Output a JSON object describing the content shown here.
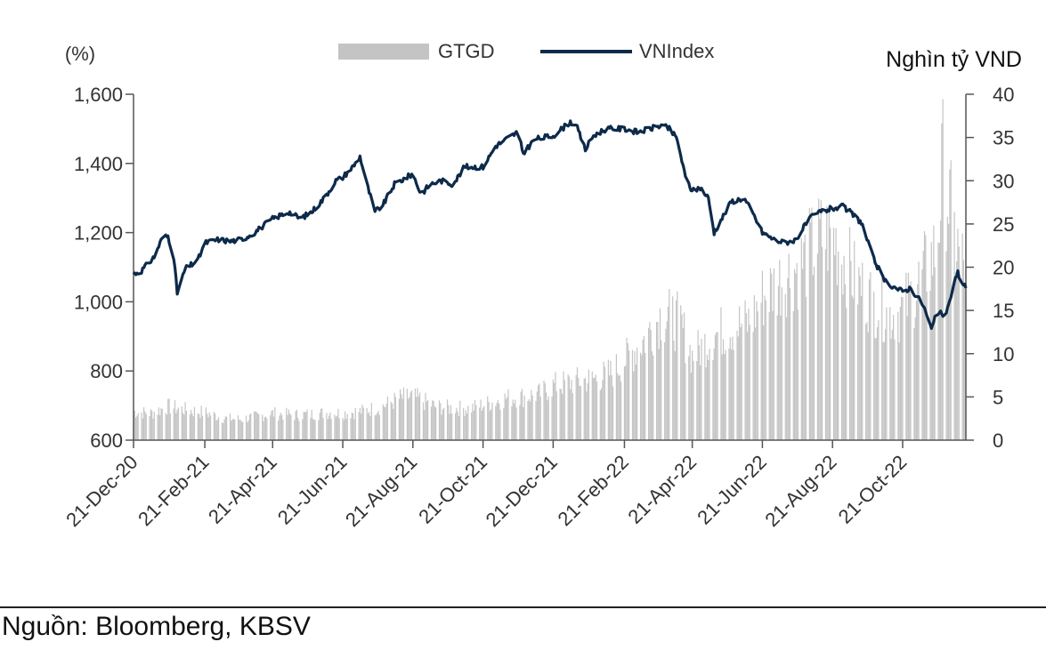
{
  "chart_data": {
    "type": "bar+line",
    "title": "",
    "legend": {
      "placement": "top-center"
    },
    "grid": false,
    "left_axis": {
      "label": "(%)",
      "range": [
        600,
        1600
      ],
      "ticks": [
        "600",
        "800",
        "1,000",
        "1,200",
        "1,400",
        "1,600"
      ],
      "tick_values": [
        600,
        800,
        1000,
        1200,
        1400,
        1600
      ]
    },
    "right_axis": {
      "label": "Nghìn tỷ VND",
      "range": [
        0,
        40
      ],
      "ticks": [
        "0",
        "5",
        "10",
        "15",
        "20",
        "25",
        "30",
        "35",
        "40"
      ],
      "tick_values": [
        0,
        5,
        10,
        15,
        20,
        25,
        30,
        35,
        40
      ]
    },
    "x_axis": {
      "range": [
        "2020-12-21",
        "2022-12-15"
      ],
      "ticks": [
        "21-Dec-20",
        "21-Feb-21",
        "21-Apr-21",
        "21-Jun-21",
        "21-Aug-21",
        "21-Oct-21",
        "21-Dec-21",
        "21-Feb-22",
        "21-Apr-22",
        "21-Jun-22",
        "21-Aug-22",
        "21-Oct-22"
      ],
      "tick_dates": [
        "2020-12-21",
        "2021-02-21",
        "2021-04-21",
        "2021-06-21",
        "2021-08-21",
        "2021-10-21",
        "2021-12-21",
        "2022-02-21",
        "2022-04-21",
        "2022-06-21",
        "2022-08-21",
        "2022-10-21"
      ]
    },
    "series": [
      {
        "name": "GTGD",
        "type": "bar",
        "axis": "right",
        "color": "#c4c4c4",
        "points": [
          [
            "2020-12-21",
            3.4
          ],
          [
            "2021-01-05",
            3.2
          ],
          [
            "2021-01-20",
            4.0
          ],
          [
            "2021-02-05",
            3.6
          ],
          [
            "2021-02-21",
            3.3
          ],
          [
            "2021-03-10",
            2.6
          ],
          [
            "2021-03-25",
            2.5
          ],
          [
            "2021-04-10",
            2.9
          ],
          [
            "2021-04-21",
            3.2
          ],
          [
            "2021-05-10",
            3.0
          ],
          [
            "2021-05-25",
            3.1
          ],
          [
            "2021-06-10",
            3.3
          ],
          [
            "2021-06-21",
            3.2
          ],
          [
            "2021-07-10",
            3.5
          ],
          [
            "2021-07-25",
            4.0
          ],
          [
            "2021-08-10",
            5.0
          ],
          [
            "2021-08-21",
            5.2
          ],
          [
            "2021-09-10",
            4.0
          ],
          [
            "2021-09-25",
            3.8
          ],
          [
            "2021-10-10",
            3.8
          ],
          [
            "2021-10-21",
            4.2
          ],
          [
            "2021-11-10",
            5.0
          ],
          [
            "2021-11-25",
            5.2
          ],
          [
            "2021-12-10",
            5.5
          ],
          [
            "2021-12-21",
            6.5
          ],
          [
            "2022-01-10",
            7.0
          ],
          [
            "2022-01-25",
            7.3
          ],
          [
            "2022-02-10",
            8.0
          ],
          [
            "2022-02-21",
            9.5
          ],
          [
            "2022-03-10",
            12.0
          ],
          [
            "2022-03-25",
            15.0
          ],
          [
            "2022-04-10",
            14.0
          ],
          [
            "2022-04-21",
            10.0
          ],
          [
            "2022-05-10",
            12.5
          ],
          [
            "2022-05-25",
            13.5
          ],
          [
            "2022-06-10",
            14.0
          ],
          [
            "2022-06-21",
            17.0
          ],
          [
            "2022-07-10",
            19.5
          ],
          [
            "2022-07-25",
            21.0
          ],
          [
            "2022-08-10",
            24.0
          ],
          [
            "2022-08-21",
            24.5
          ],
          [
            "2022-09-10",
            19.0
          ],
          [
            "2022-09-25",
            16.5
          ],
          [
            "2022-10-10",
            15.0
          ],
          [
            "2022-10-21",
            15.5
          ],
          [
            "2022-11-05",
            19.0
          ],
          [
            "2022-11-20",
            23.0
          ],
          [
            "2022-11-25",
            33.0
          ],
          [
            "2022-12-05",
            24.0
          ],
          [
            "2022-12-15",
            20.0
          ]
        ]
      },
      {
        "name": "VNIndex",
        "type": "line",
        "axis": "left",
        "color": "#0d2a4a",
        "points": [
          [
            "2020-12-21",
            1080
          ],
          [
            "2020-12-28",
            1090
          ],
          [
            "2021-01-08",
            1130
          ],
          [
            "2021-01-15",
            1185
          ],
          [
            "2021-01-20",
            1190
          ],
          [
            "2021-01-25",
            1130
          ],
          [
            "2021-01-28",
            1025
          ],
          [
            "2021-02-04",
            1095
          ],
          [
            "2021-02-15",
            1120
          ],
          [
            "2021-02-21",
            1170
          ],
          [
            "2021-03-05",
            1180
          ],
          [
            "2021-03-15",
            1175
          ],
          [
            "2021-03-25",
            1180
          ],
          [
            "2021-04-05",
            1200
          ],
          [
            "2021-04-21",
            1240
          ],
          [
            "2021-05-05",
            1260
          ],
          [
            "2021-05-15",
            1240
          ],
          [
            "2021-05-25",
            1260
          ],
          [
            "2021-06-05",
            1300
          ],
          [
            "2021-06-15",
            1350
          ],
          [
            "2021-06-21",
            1360
          ],
          [
            "2021-07-01",
            1395
          ],
          [
            "2021-07-06",
            1420
          ],
          [
            "2021-07-12",
            1340
          ],
          [
            "2021-07-19",
            1260
          ],
          [
            "2021-07-26",
            1280
          ],
          [
            "2021-08-05",
            1340
          ],
          [
            "2021-08-21",
            1370
          ],
          [
            "2021-08-28",
            1310
          ],
          [
            "2021-09-05",
            1340
          ],
          [
            "2021-09-15",
            1350
          ],
          [
            "2021-09-25",
            1340
          ],
          [
            "2021-10-05",
            1390
          ],
          [
            "2021-10-21",
            1390
          ],
          [
            "2021-11-01",
            1450
          ],
          [
            "2021-11-10",
            1470
          ],
          [
            "2021-11-20",
            1490
          ],
          [
            "2021-11-25",
            1430
          ],
          [
            "2021-12-05",
            1470
          ],
          [
            "2021-12-21",
            1480
          ],
          [
            "2022-01-05",
            1520
          ],
          [
            "2022-01-10",
            1510
          ],
          [
            "2022-01-18",
            1440
          ],
          [
            "2022-01-25",
            1480
          ],
          [
            "2022-02-05",
            1500
          ],
          [
            "2022-02-21",
            1500
          ],
          [
            "2022-03-05",
            1490
          ],
          [
            "2022-03-15",
            1500
          ],
          [
            "2022-03-25",
            1510
          ],
          [
            "2022-04-01",
            1500
          ],
          [
            "2022-04-08",
            1470
          ],
          [
            "2022-04-15",
            1360
          ],
          [
            "2022-04-21",
            1320
          ],
          [
            "2022-04-28",
            1330
          ],
          [
            "2022-05-05",
            1300
          ],
          [
            "2022-05-10",
            1200
          ],
          [
            "2022-05-15",
            1230
          ],
          [
            "2022-05-25",
            1290
          ],
          [
            "2022-06-05",
            1300
          ],
          [
            "2022-06-12",
            1260
          ],
          [
            "2022-06-21",
            1200
          ],
          [
            "2022-07-01",
            1180
          ],
          [
            "2022-07-10",
            1170
          ],
          [
            "2022-07-20",
            1180
          ],
          [
            "2022-08-01",
            1240
          ],
          [
            "2022-08-10",
            1260
          ],
          [
            "2022-08-21",
            1270
          ],
          [
            "2022-08-30",
            1275
          ],
          [
            "2022-09-05",
            1260
          ],
          [
            "2022-09-15",
            1230
          ],
          [
            "2022-09-25",
            1130
          ],
          [
            "2022-10-05",
            1060
          ],
          [
            "2022-10-15",
            1040
          ],
          [
            "2022-10-21",
            1030
          ],
          [
            "2022-10-28",
            1040
          ],
          [
            "2022-11-08",
            990
          ],
          [
            "2022-11-15",
            920
          ],
          [
            "2022-11-20",
            970
          ],
          [
            "2022-11-28",
            960
          ],
          [
            "2022-12-02",
            1020
          ],
          [
            "2022-12-08",
            1090
          ],
          [
            "2022-12-10",
            1050
          ],
          [
            "2022-12-15",
            1045
          ]
        ]
      }
    ]
  },
  "source": "Nguồn: Bloomberg, KBSV"
}
